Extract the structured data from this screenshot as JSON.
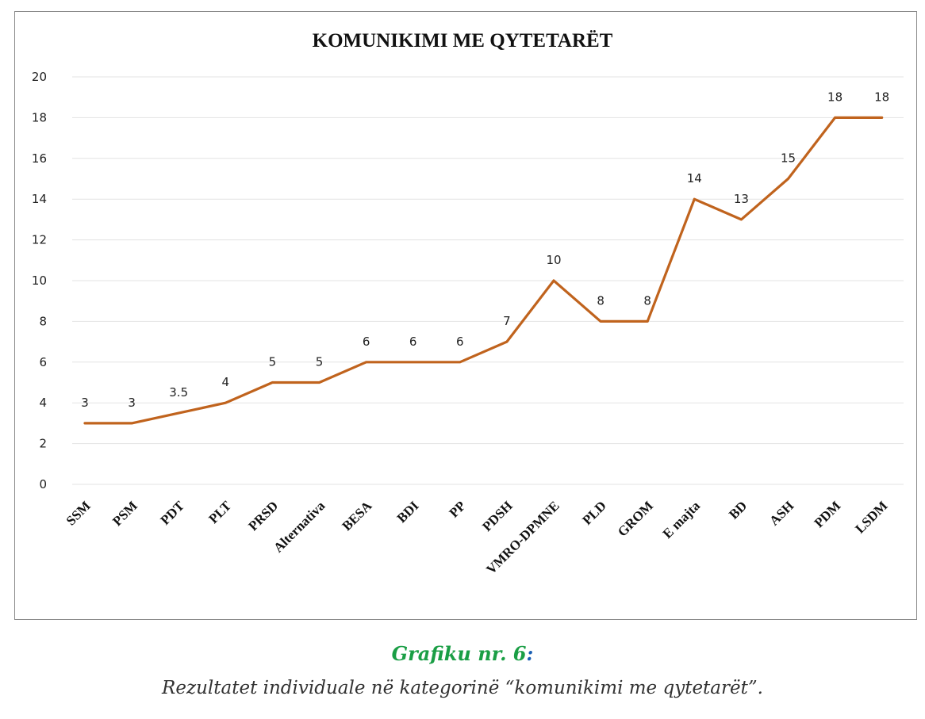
{
  "chart_data": {
    "type": "line",
    "title": "KOMUNIKIMI ME QYTETARËT",
    "categories": [
      "SSM",
      "PSM",
      "PDT",
      "PLT",
      "PRSD",
      "Alternativa",
      "BESA",
      "BDI",
      "PP",
      "PDSH",
      "VMRO-DPMNE",
      "PLD",
      "GROM",
      "E majta",
      "BD",
      "ASH",
      "PDM",
      "LSDM"
    ],
    "values": [
      3,
      3,
      3.5,
      4,
      5,
      5,
      6,
      6,
      6,
      7,
      10,
      8,
      8,
      14,
      13,
      15,
      18,
      18
    ],
    "data_labels": [
      "3",
      "3",
      "3.5",
      "4",
      "5",
      "5",
      "6",
      "6",
      "6",
      "7",
      "10",
      "8",
      "8",
      "14",
      "13",
      "15",
      "18",
      "18"
    ],
    "ylim": [
      0,
      20
    ],
    "yticks": [
      "0",
      "2",
      "4",
      "6",
      "8",
      "10",
      "12",
      "14",
      "16",
      "18",
      "20"
    ],
    "grid": true,
    "line_color": "#c0631d",
    "grid_color": "#e3e3e3"
  },
  "caption": {
    "label": "Grafiku nr. 6",
    "label_suffix": ":",
    "text": "Rezultatet individuale në kategorinë “komunikimi me qytetarët”."
  },
  "colors": {
    "caption_label": "#1a9e45",
    "caption_suffix": "#1a5fb4"
  }
}
